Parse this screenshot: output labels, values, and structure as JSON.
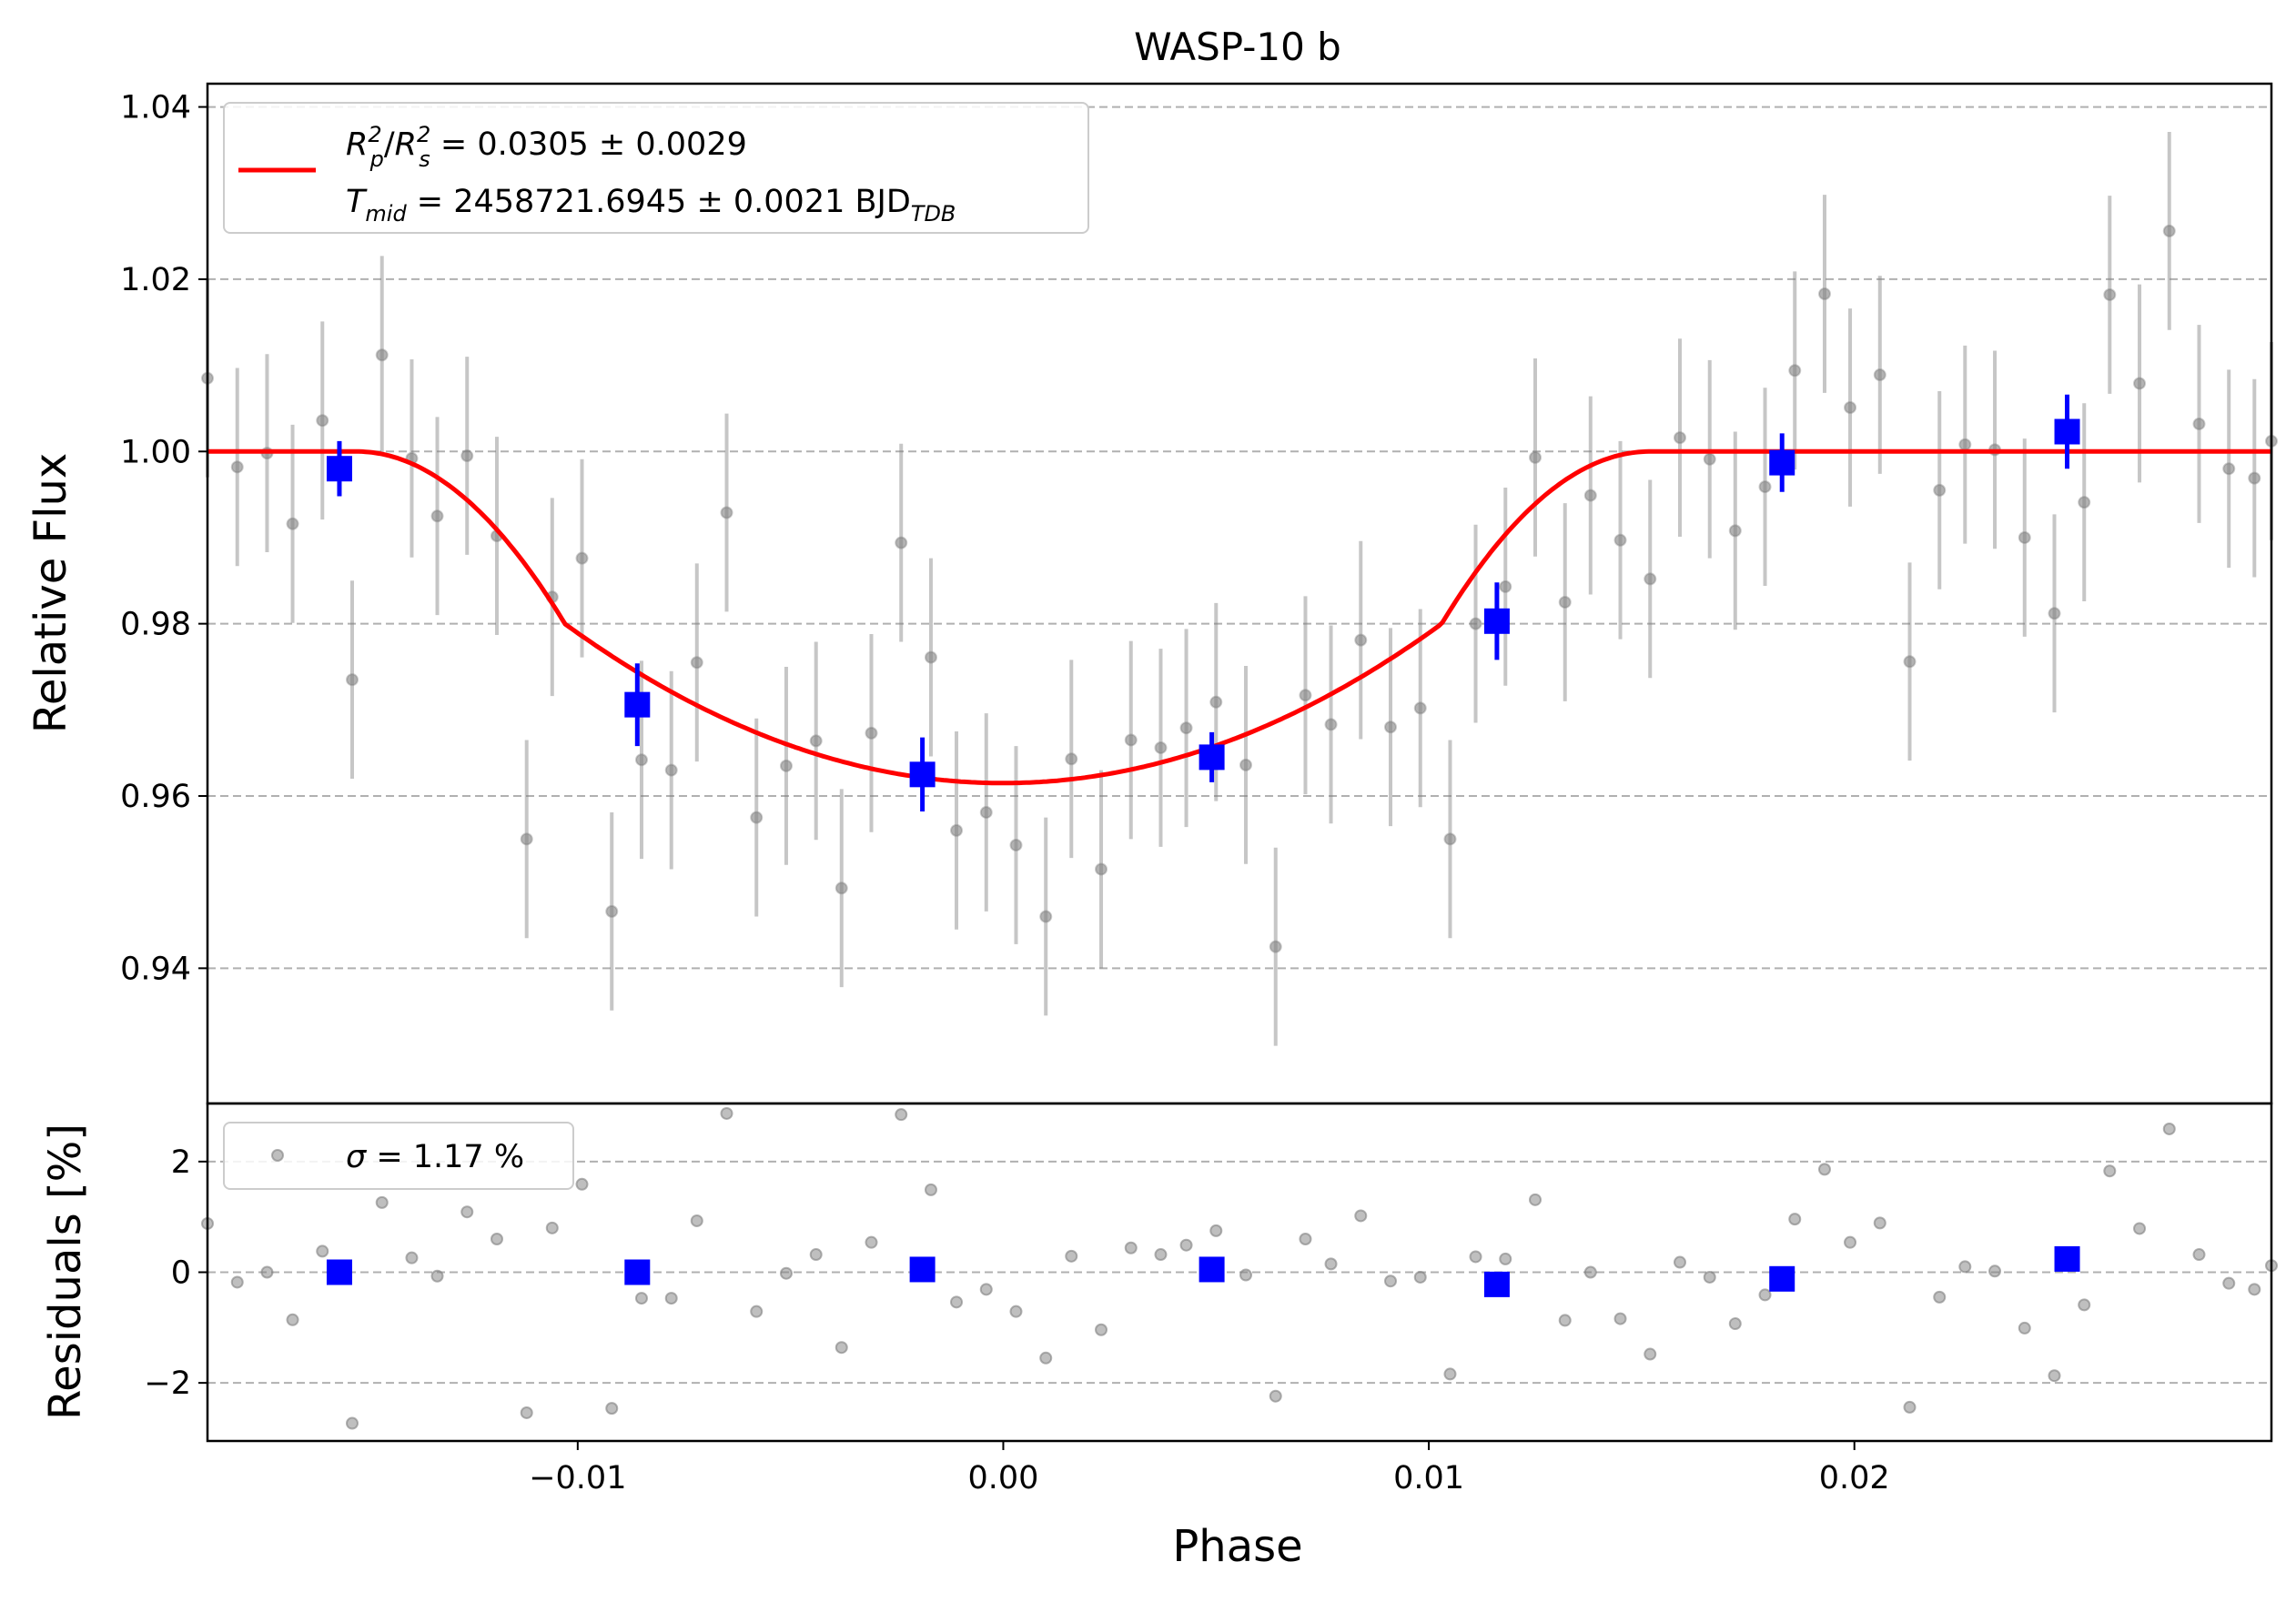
{
  "chart_data": {
    "type": "scatter",
    "title": "WASP-10 b",
    "xlabel": "Phase",
    "xlim": [
      -0.0187,
      0.0298
    ],
    "xticks": [
      -0.01,
      0.0,
      0.01,
      0.02
    ],
    "xtick_labels": [
      "−0.01",
      "0.00",
      "0.01",
      "0.02"
    ],
    "grid": "horizontal dashed",
    "top_panel": {
      "ylabel": "Relative Flux",
      "ylim": [
        0.9243,
        1.0427
      ],
      "yticks": [
        0.94,
        0.96,
        0.98,
        1.0,
        1.02,
        1.04
      ],
      "ytick_labels": [
        "0.94",
        "0.96",
        "0.98",
        "1.00",
        "1.02",
        "1.04"
      ],
      "legend": {
        "position": "upper-left",
        "model_line1_left": "R",
        "model_line1_right": " = 0.0305 ± 0.0029",
        "model_line2_left": "T",
        "model_line2_mid": " = 2458721.6945 ± 0.0021 BJD"
      },
      "model_color": "#ff0000",
      "model": {
        "depth": 0.0385,
        "ingress_start": -0.0152,
        "ingress_end": -0.0103,
        "egress_start": 0.0103,
        "egress_end": 0.0152
      },
      "data_color": "#808080",
      "data": [
        [
          -0.0187,
          1.0085,
          0.0115
        ],
        [
          -0.018,
          0.9982,
          0.0115
        ],
        [
          -0.0173,
          0.9998,
          0.0115
        ],
        [
          -0.0167,
          0.9916,
          0.0115
        ],
        [
          -0.016,
          1.0036,
          0.0115
        ],
        [
          -0.0153,
          0.9735,
          0.0115
        ],
        [
          -0.0146,
          1.0112,
          0.0115
        ],
        [
          -0.0139,
          0.9992,
          0.0115
        ],
        [
          -0.0133,
          0.9925,
          0.0115
        ],
        [
          -0.0126,
          0.9995,
          0.0115
        ],
        [
          -0.0119,
          0.9902,
          0.0115
        ],
        [
          -0.0112,
          0.955,
          0.0115
        ],
        [
          -0.0106,
          0.9831,
          0.0115
        ],
        [
          -0.0099,
          0.9876,
          0.0115
        ],
        [
          -0.0092,
          0.9466,
          0.0115
        ],
        [
          -0.0085,
          0.9642,
          0.0115
        ],
        [
          -0.0078,
          0.963,
          0.0115
        ],
        [
          -0.0072,
          0.9755,
          0.0115
        ],
        [
          -0.0065,
          0.9929,
          0.0115
        ],
        [
          -0.0058,
          0.9575,
          0.0115
        ],
        [
          -0.0051,
          0.9635,
          0.0115
        ],
        [
          -0.0044,
          0.9664,
          0.0115
        ],
        [
          -0.0038,
          0.9493,
          0.0115
        ],
        [
          -0.0031,
          0.9673,
          0.0115
        ],
        [
          -0.0024,
          0.9894,
          0.0115
        ],
        [
          -0.0017,
          0.9761,
          0.0115
        ],
        [
          -0.0011,
          0.956,
          0.0115
        ],
        [
          -0.0004,
          0.9581,
          0.0115
        ],
        [
          0.0003,
          0.9543,
          0.0115
        ],
        [
          0.001,
          0.946,
          0.0115
        ],
        [
          0.0016,
          0.9643,
          0.0115
        ],
        [
          0.0023,
          0.9515,
          0.0115
        ],
        [
          0.003,
          0.9665,
          0.0115
        ],
        [
          0.0037,
          0.9656,
          0.0115
        ],
        [
          0.0043,
          0.9679,
          0.0115
        ],
        [
          0.005,
          0.9709,
          0.0115
        ],
        [
          0.0057,
          0.9636,
          0.0115
        ],
        [
          0.0064,
          0.9425,
          0.0115
        ],
        [
          0.0071,
          0.9717,
          0.0115
        ],
        [
          0.0077,
          0.9683,
          0.0115
        ],
        [
          0.0084,
          0.9781,
          0.0115
        ],
        [
          0.0091,
          0.968,
          0.0115
        ],
        [
          0.0098,
          0.9702,
          0.0115
        ],
        [
          0.0105,
          0.955,
          0.0115
        ],
        [
          0.0111,
          0.98,
          0.0115
        ],
        [
          0.0118,
          0.9843,
          0.0115
        ],
        [
          0.0125,
          0.9993,
          0.0115
        ],
        [
          0.0132,
          0.9825,
          0.0115
        ],
        [
          0.0138,
          0.9949,
          0.0115
        ],
        [
          0.0145,
          0.9897,
          0.0115
        ],
        [
          0.0152,
          0.9852,
          0.0115
        ],
        [
          0.0159,
          1.0016,
          0.0115
        ],
        [
          0.0166,
          0.9991,
          0.0115
        ],
        [
          0.0172,
          0.9908,
          0.0115
        ],
        [
          0.0179,
          0.9959,
          0.0115
        ],
        [
          0.0186,
          1.0094,
          0.0115
        ],
        [
          0.0193,
          1.0183,
          0.0115
        ],
        [
          0.0199,
          1.0051,
          0.0115
        ],
        [
          0.0206,
          1.0089,
          0.0115
        ],
        [
          0.0213,
          0.9756,
          0.0115
        ],
        [
          0.022,
          0.9955,
          0.0115
        ],
        [
          0.0226,
          1.0008,
          0.0115
        ],
        [
          0.0233,
          1.0002,
          0.0115
        ],
        [
          0.024,
          0.99,
          0.0115
        ],
        [
          0.0247,
          0.9812,
          0.0115
        ],
        [
          0.0254,
          0.9941,
          0.0115
        ],
        [
          0.026,
          1.0182,
          0.0115
        ],
        [
          0.0267,
          1.0079,
          0.0115
        ],
        [
          0.0274,
          1.0256,
          0.0115
        ],
        [
          0.0281,
          1.0032,
          0.0115
        ],
        [
          0.0288,
          0.998,
          0.0115
        ],
        [
          0.0294,
          0.9969,
          0.0115
        ],
        [
          0.0298,
          1.0012,
          0.0115
        ]
      ],
      "binned_color": "#0000ff",
      "binned": [
        [
          -0.0156,
          0.998,
          0.0032
        ],
        [
          -0.0086,
          0.9706,
          0.0048
        ],
        [
          -0.0019,
          0.9625,
          0.0043
        ],
        [
          0.0049,
          0.9645,
          0.0029
        ],
        [
          0.0116,
          0.9803,
          0.0045
        ],
        [
          0.0183,
          0.9987,
          0.0034
        ],
        [
          0.025,
          1.0023,
          0.0043
        ]
      ]
    },
    "bottom_panel": {
      "ylabel": "Residuals [%]",
      "ylim": [
        -3.05,
        3.05
      ],
      "yticks": [
        -2,
        0,
        2
      ],
      "ytick_labels": [
        "−2",
        "0",
        "2"
      ],
      "legend": {
        "position": "upper-left",
        "text": " = 1.17 %",
        "sigma_symbol": "σ"
      },
      "residuals": [
        0.88,
        -0.18,
        0.0,
        -0.86,
        0.38,
        -2.73,
        1.26,
        0.26,
        -0.07,
        1.09,
        0.6,
        -2.54,
        0.8,
        1.59,
        -2.46,
        -0.47,
        -0.47,
        0.93,
        2.87,
        -0.71,
        -0.02,
        0.32,
        -1.36,
        0.54,
        2.85,
        1.49,
        -0.54,
        -0.31,
        -0.71,
        -1.55,
        0.29,
        -1.04,
        0.44,
        0.32,
        0.49,
        0.75,
        -0.05,
        -2.24,
        0.6,
        0.15,
        1.02,
        -0.16,
        -0.09,
        -1.84,
        0.28,
        0.24,
        1.31,
        -0.87,
        0.0,
        -0.84,
        -1.48,
        0.18,
        -0.09,
        -0.93,
        -0.41,
        0.96,
        1.86,
        0.54,
        0.89,
        -2.44,
        -0.45,
        0.1,
        0.02,
        -1.01,
        -1.87,
        -0.59,
        1.83,
        0.79,
        2.59,
        0.32,
        -0.2,
        -0.31,
        0.12
      ],
      "binned": [
        0.0,
        0.0,
        0.05,
        0.05,
        -0.22,
        -0.12,
        0.24
      ]
    }
  }
}
